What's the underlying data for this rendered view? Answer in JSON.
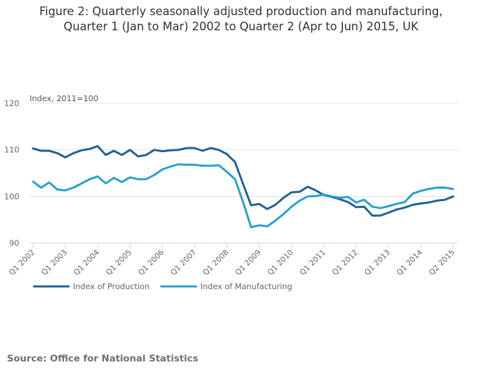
{
  "chart_data": {
    "type": "line",
    "title_line1": "Figure 2: Quarterly seasonally adjusted production and manufacturing,",
    "title_line2": "Quarter 1 (Jan to Mar) 2002 to Quarter 2 (Apr to Jun) 2015, UK",
    "ylabel": "Index, 2011=100",
    "xlabel": "",
    "ylim": [
      90,
      120
    ],
    "yticks": [
      90,
      100,
      110,
      120
    ],
    "grid": true,
    "legend_position": "bottom-left",
    "xtick_labels": [
      "Q1 2002",
      "Q1 2003",
      "Q1 2004",
      "Q1 2005",
      "Q1 2006",
      "Q1 2007",
      "Q1 2008",
      "Q1 2009",
      "Q1 2010",
      "Q1 2011",
      "Q1 2012",
      "Q1 2013",
      "Q1 2014",
      "Q2 2015"
    ],
    "xtick_every": 4,
    "num_points": 53,
    "series": [
      {
        "name": "Index of Production",
        "color": "#206095",
        "values": [
          110.3,
          109.8,
          109.8,
          109.3,
          108.4,
          109.3,
          109.9,
          110.2,
          110.8,
          108.9,
          109.8,
          108.9,
          110.0,
          108.6,
          108.9,
          110.0,
          109.7,
          109.9,
          110.0,
          110.4,
          110.4,
          109.8,
          110.4,
          110.0,
          109.1,
          107.4,
          102.7,
          98.1,
          98.4,
          97.3,
          98.2,
          99.7,
          100.9,
          101.0,
          102.1,
          101.3,
          100.3,
          99.9,
          99.4,
          98.8,
          97.7,
          97.8,
          95.9,
          95.9,
          96.5,
          97.2,
          97.6,
          98.2,
          98.5,
          98.7,
          99.1,
          99.3,
          100.0
        ]
      },
      {
        "name": "Index of Manufacturing",
        "color": "#27a0cc",
        "values": [
          103.2,
          101.9,
          103.0,
          101.5,
          101.3,
          101.9,
          102.8,
          103.7,
          104.3,
          102.8,
          104.0,
          103.1,
          104.1,
          103.7,
          103.7,
          104.6,
          105.8,
          106.4,
          106.9,
          106.8,
          106.8,
          106.6,
          106.6,
          106.7,
          105.3,
          103.7,
          98.8,
          93.4,
          93.8,
          93.6,
          94.8,
          96.2,
          97.8,
          99.1,
          100.0,
          100.1,
          100.4,
          100.0,
          99.7,
          99.9,
          98.7,
          99.3,
          97.8,
          97.5,
          97.9,
          98.4,
          98.8,
          100.6,
          101.2,
          101.6,
          101.9,
          101.9,
          101.6
        ]
      }
    ]
  },
  "source": "Source: Office for National Statistics"
}
